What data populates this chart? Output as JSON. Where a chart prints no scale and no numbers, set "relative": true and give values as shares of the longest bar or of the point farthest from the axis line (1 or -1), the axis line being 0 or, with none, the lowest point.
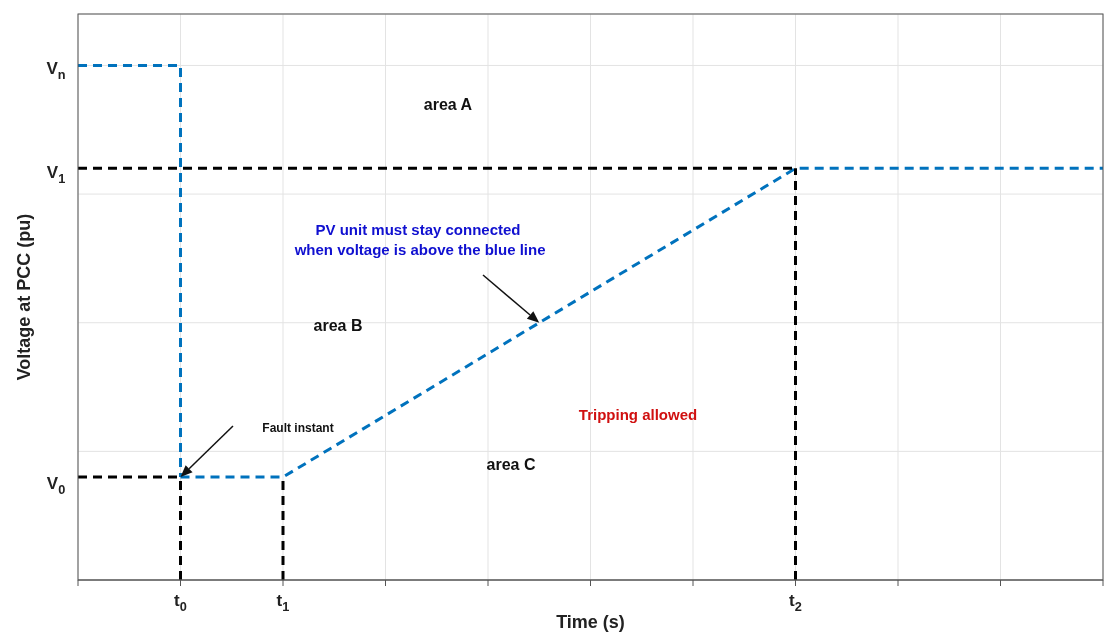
{
  "chart_data": {
    "type": "line",
    "relative": true,
    "xlabel": "Time (s)",
    "ylabel": "Voltage at PCC (pu)",
    "categories": [
      null,
      "t$_{0}$",
      "t$_{1}$",
      null,
      null,
      null,
      null,
      "t$_{2}$",
      null,
      null,
      null
    ],
    "grid": true,
    "marker": "none",
    "series": [
      {
        "type": "step",
        "color": "#0072bd",
        "line_style": "dashed",
        "values": [
          1,
          0.2,
          null,
          null,
          null,
          null,
          null,
          null,
          null,
          null,
          null
        ]
      },
      {
        "color": "#0072bd",
        "line_style": "dashed",
        "values": [
          null,
          0.2,
          0.2,
          0.32,
          0.44,
          0.56,
          0.68,
          0.8,
          0.8,
          0.8,
          0.8
        ]
      },
      {
        "color": "#000000",
        "line_style": "dashed",
        "values": [
          0.2,
          0.2,
          null,
          null,
          null,
          null,
          null,
          null,
          null,
          null,
          null
        ]
      },
      {
        "color": "#000000",
        "line_style": "dashed",
        "values": [
          0.8,
          0.8,
          0.8,
          0.8,
          0.8,
          0.8,
          0.8,
          0.8,
          null,
          null,
          null
        ]
      },
      {
        "color": "#000000",
        "line_style": "dashed",
        "x": [
          "t$_{0}$",
          "t$_{0}$"
        ],
        "values": [
          0,
          0.2
        ]
      },
      {
        "color": "#000000",
        "line_style": "dashed",
        "x": [
          "t$_{1}$",
          "t$_{1}$"
        ],
        "values": [
          0,
          0.2
        ]
      },
      {
        "color": "#000000",
        "line_style": "dashed",
        "x": [
          "t$_{2}$",
          "t$_{2}$"
        ],
        "values": [
          0,
          0.8
        ]
      }
    ],
    "annotations": [
      "V$_{n}$",
      "V$_{1}$",
      "V$_{0}$",
      "area A",
      "area B",
      "area C",
      "Tripping allowed",
      "PV unit must stay connected\n when voltage is above the blue line",
      "Fault instant"
    ]
  }
}
